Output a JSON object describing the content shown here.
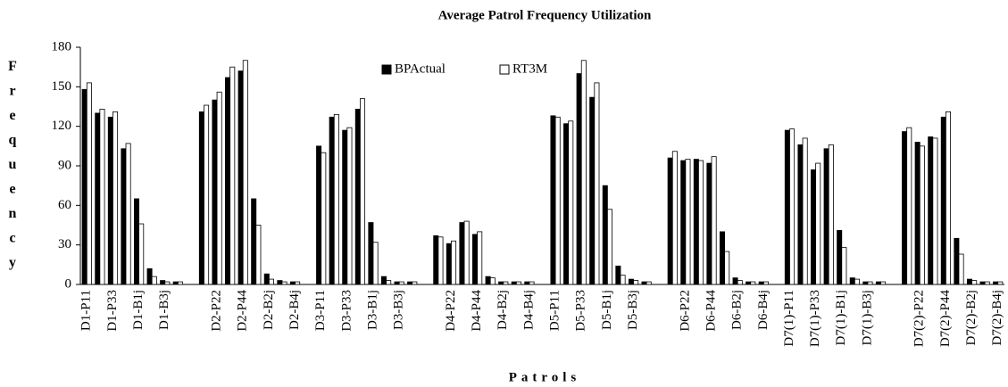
{
  "chart_data": {
    "type": "bar",
    "title": "Average Patrol Frequency Utilization",
    "y_label": "Frequency",
    "x_label": "Patrols",
    "categories": [
      "D1-P11",
      null,
      "D1-P33",
      null,
      "D1-B1j",
      null,
      "D1-B3j",
      null,
      null,
      null,
      "D2-P22",
      null,
      "D2-P44",
      null,
      "D2-B2j",
      null,
      "D2-B4j",
      null,
      "D3-P11",
      null,
      "D3-P33",
      null,
      "D3-B1j",
      null,
      "D3-B3j",
      null,
      null,
      null,
      "D4-P22",
      null,
      "D4-P44",
      null,
      "D4-B2j",
      null,
      "D4-B4j",
      null,
      "D5-P11",
      null,
      "D5-P33",
      null,
      "D5-B1j",
      null,
      "D5-B3j",
      null,
      null,
      null,
      "D6-P22",
      null,
      "D6-P44",
      null,
      "D6-B2j",
      null,
      "D6-B4j",
      null,
      "D7(1)-P11",
      null,
      "D7(1)-P33",
      null,
      "D7(1)-B1j",
      null,
      "D7(1)-B3j",
      null,
      null,
      null,
      "D7(2)-P22",
      null,
      "D7(2)-P44",
      null,
      "D7(2)-B2j",
      null,
      "D7(2)-B4j"
    ],
    "series": [
      {
        "name": "BPActual",
        "color": "#000000",
        "values": [
          148,
          130,
          127,
          103,
          65,
          12,
          3,
          2,
          null,
          131,
          140,
          157,
          162,
          65,
          8,
          3,
          2,
          null,
          105,
          127,
          117,
          133,
          47,
          6,
          2,
          2,
          null,
          37,
          31,
          47,
          38,
          6,
          2,
          2,
          2,
          null,
          128,
          122,
          160,
          142,
          75,
          14,
          4,
          2,
          null,
          96,
          94,
          95,
          92,
          40,
          5,
          2,
          2,
          null,
          117,
          106,
          87,
          103,
          41,
          5,
          2,
          2,
          null,
          116,
          108,
          112,
          127,
          35,
          4,
          2,
          2
        ]
      },
      {
        "name": "RT3M",
        "color": "#ffffff",
        "values": [
          153,
          133,
          131,
          107,
          46,
          6,
          2,
          2,
          null,
          136,
          146,
          165,
          170,
          45,
          4,
          2,
          2,
          null,
          100,
          129,
          119,
          141,
          32,
          3,
          2,
          2,
          null,
          36,
          33,
          48,
          40,
          5,
          2,
          2,
          2,
          null,
          127,
          124,
          170,
          153,
          57,
          7,
          3,
          2,
          null,
          101,
          95,
          94,
          97,
          25,
          3,
          2,
          2,
          null,
          118,
          111,
          92,
          106,
          28,
          4,
          2,
          2,
          null,
          119,
          105,
          111,
          131,
          23,
          3,
          2,
          2
        ]
      }
    ],
    "ylim": [
      0,
      180
    ],
    "yticks": [
      0,
      30,
      60,
      90,
      120,
      150,
      180
    ],
    "grid": false,
    "legend": "top"
  }
}
